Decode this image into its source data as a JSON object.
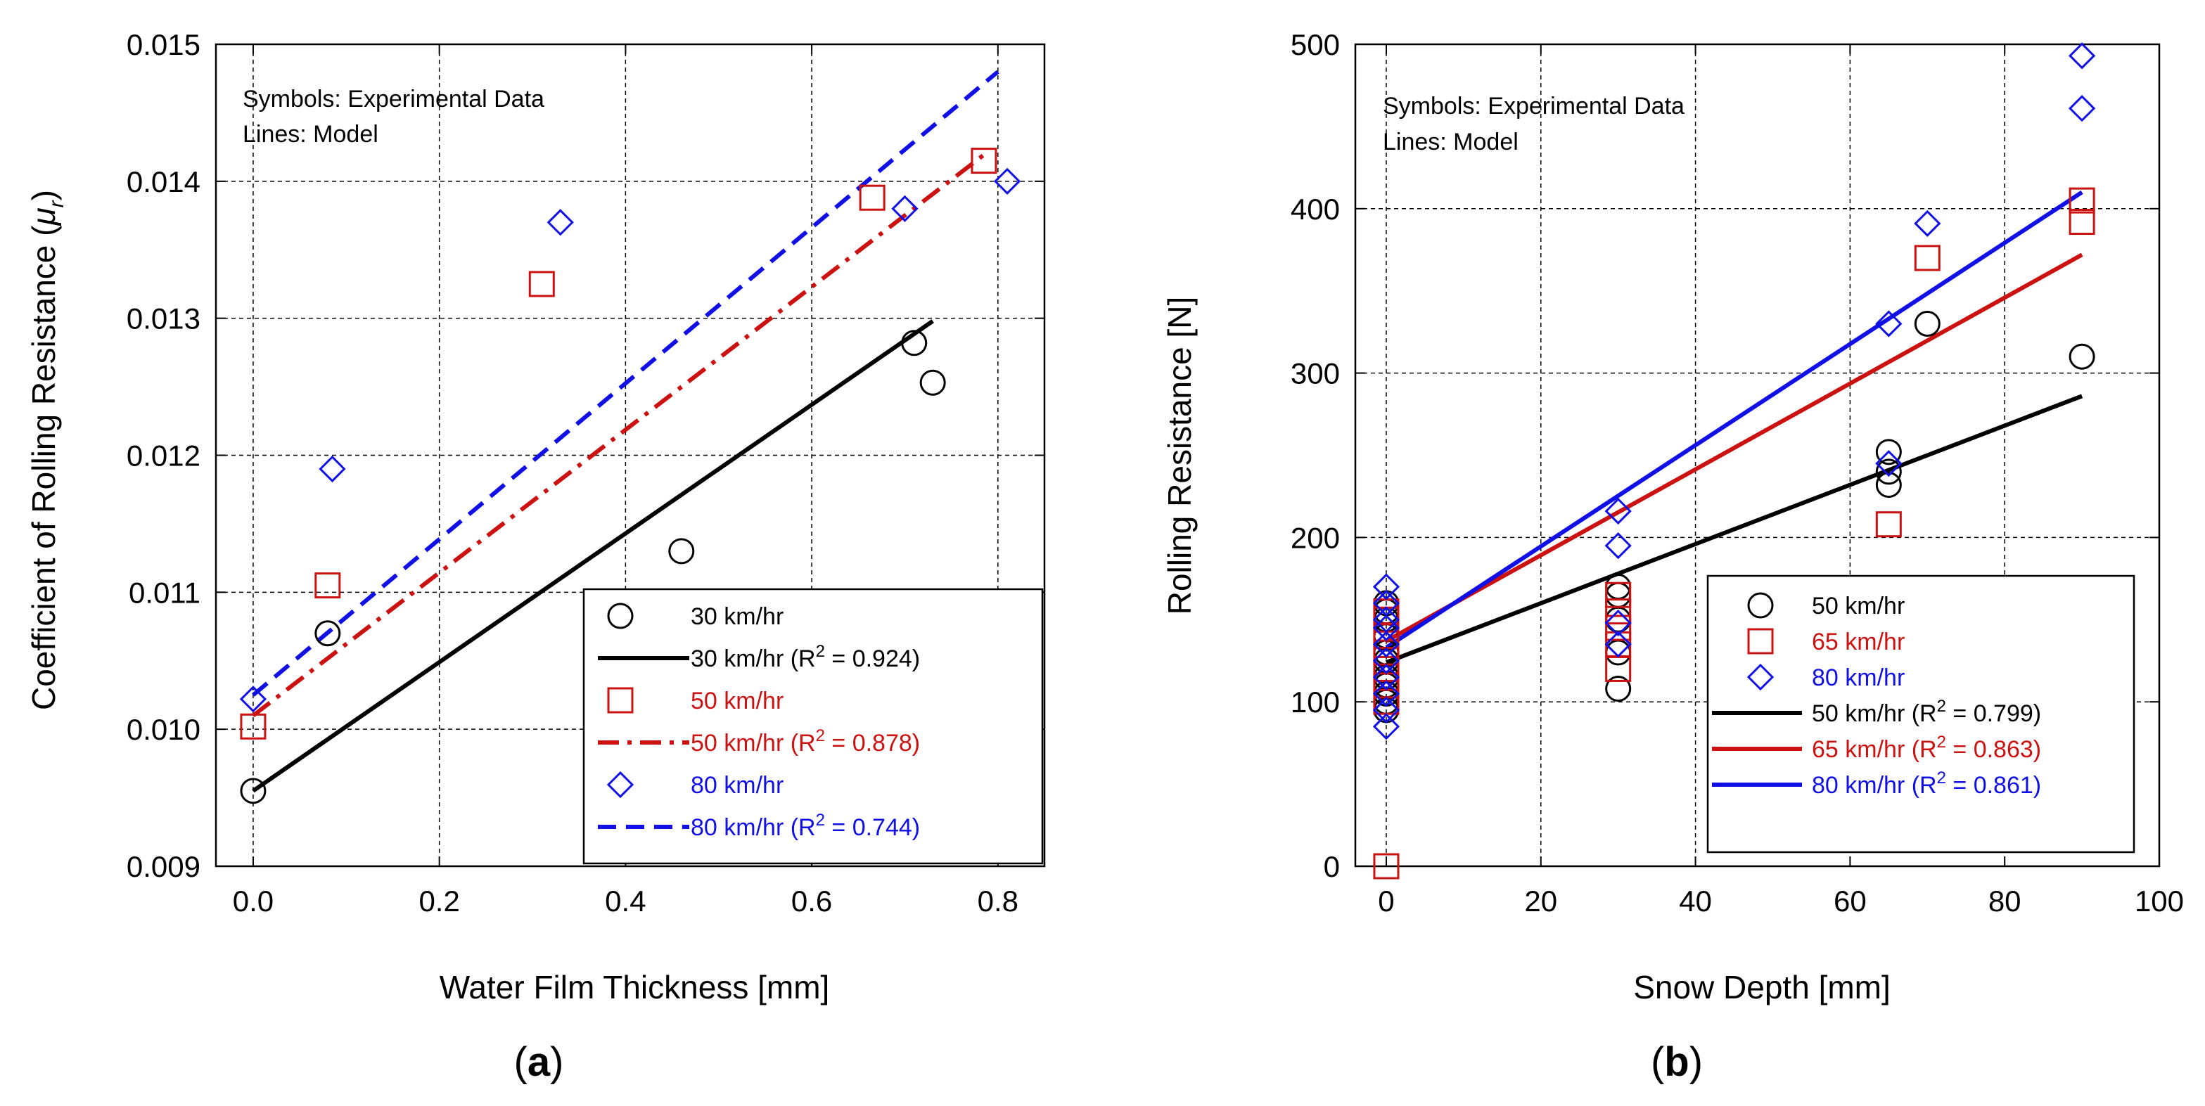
{
  "colors": {
    "black": "#000000",
    "red": "#cc1111",
    "blue": "#1010e6",
    "grid": "#000000"
  },
  "chart_data": [
    {
      "type": "scatter",
      "panel_label": "a",
      "xlabel": "Water Film Thickness [mm]",
      "ylabel_main": "Coefficient of Rolling Resistance (",
      "ylabel_symbol": "μ",
      "ylabel_sub": "r",
      "ylabel_close": ")",
      "xlim": [
        -0.04,
        0.85
      ],
      "ylim": [
        0.009,
        0.015
      ],
      "xticks": [
        0.0,
        0.2,
        0.4,
        0.6,
        0.8
      ],
      "xtick_labels": [
        "0.0",
        "0.2",
        "0.4",
        "0.6",
        "0.8"
      ],
      "yticks": [
        0.009,
        0.01,
        0.011,
        0.012,
        0.013,
        0.014,
        0.015
      ],
      "ytick_labels": [
        "0.009",
        "0.010",
        "0.011",
        "0.012",
        "0.013",
        "0.014",
        "0.015"
      ],
      "grid": true,
      "annotation_lines": [
        "Symbols: Experimental Data",
        "Lines: Model"
      ],
      "legend_position": "bottom-right",
      "series": [
        {
          "name": "30 km/hr",
          "kind": "points",
          "marker": "circle",
          "color": "black",
          "x": [
            0.0,
            0.08,
            0.46,
            0.71,
            0.73
          ],
          "y": [
            0.00955,
            0.0107,
            0.0113,
            0.01282,
            0.01253
          ]
        },
        {
          "name": "30 km/hr",
          "r2_label": "R",
          "r2_sup": "2",
          "r2_value": " = 0.924)",
          "kind": "line",
          "dash": "solid",
          "color": "black",
          "x": [
            0.0,
            0.73
          ],
          "y": [
            0.00955,
            0.01298
          ]
        },
        {
          "name": "50 km/hr",
          "kind": "points",
          "marker": "square",
          "color": "red",
          "x": [
            0.0,
            0.08,
            0.31,
            0.665,
            0.785
          ],
          "y": [
            0.01002,
            0.01105,
            0.01325,
            0.01388,
            0.01415
          ]
        },
        {
          "name": "50 km/hr",
          "r2_label": "R",
          "r2_sup": "2",
          "r2_value": " = 0.878)",
          "kind": "line",
          "dash": "dashdot",
          "color": "red",
          "x": [
            0.0,
            0.79
          ],
          "y": [
            0.0101,
            0.01422
          ]
        },
        {
          "name": "80 km/hr",
          "kind": "points",
          "marker": "diamond",
          "color": "blue",
          "x": [
            0.0,
            0.085,
            0.33,
            0.7,
            0.81
          ],
          "y": [
            0.01022,
            0.0119,
            0.0137,
            0.0138,
            0.014
          ]
        },
        {
          "name": "80 km/hr",
          "r2_label": "R",
          "r2_sup": "2",
          "r2_value": " = 0.744)",
          "kind": "line",
          "dash": "dashed",
          "color": "blue",
          "x": [
            0.0,
            0.8
          ],
          "y": [
            0.01025,
            0.0148
          ]
        }
      ]
    },
    {
      "type": "scatter",
      "panel_label": "b",
      "xlabel": "Snow Depth [mm]",
      "ylabel": "Rolling Resistance [N]",
      "xlim": [
        -4,
        100
      ],
      "ylim": [
        0,
        500
      ],
      "xticks": [
        0,
        20,
        40,
        60,
        80,
        100
      ],
      "xtick_labels": [
        "0",
        "20",
        "40",
        "60",
        "80",
        "100"
      ],
      "yticks": [
        0,
        100,
        200,
        300,
        400,
        500
      ],
      "ytick_labels": [
        "0",
        "100",
        "200",
        "300",
        "400",
        "500"
      ],
      "grid": true,
      "annotation_lines": [
        "Symbols: Experimental Data",
        "Lines: Model"
      ],
      "legend_position": "bottom-right",
      "series": [
        {
          "name": "50 km/hr",
          "kind": "points",
          "marker": "circle",
          "color": "black",
          "x": [
            0,
            0,
            0,
            0,
            0,
            0,
            0,
            0,
            0,
            0,
            0,
            30,
            30,
            30,
            30,
            30,
            65,
            65,
            65,
            70,
            90
          ],
          "y": [
            95,
            100,
            105,
            110,
            115,
            125,
            130,
            140,
            150,
            155,
            160,
            108,
            130,
            150,
            165,
            170,
            232,
            240,
            252,
            330,
            310
          ]
        },
        {
          "name": "65 km/hr",
          "kind": "points",
          "marker": "square",
          "color": "red",
          "x": [
            0,
            0,
            0,
            0,
            0,
            0,
            0,
            0,
            30,
            30,
            30,
            30,
            30,
            65,
            70,
            90,
            90
          ],
          "y": [
            0,
            100,
            110,
            120,
            130,
            140,
            150,
            155,
            120,
            135,
            145,
            155,
            165,
            208,
            370,
            392,
            405
          ]
        },
        {
          "name": "80 km/hr",
          "kind": "points",
          "marker": "diamond",
          "color": "blue",
          "x": [
            0,
            0,
            0,
            0,
            0,
            0,
            0,
            0,
            0,
            0,
            30,
            30,
            30,
            30,
            65,
            65,
            70,
            90,
            90
          ],
          "y": [
            85,
            95,
            105,
            115,
            125,
            135,
            145,
            150,
            160,
            170,
            135,
            148,
            195,
            216,
            245,
            330,
            391,
            461,
            493
          ]
        },
        {
          "name": "50 km/hr",
          "r2_label": "R",
          "r2_sup": "2",
          "r2_value": " = 0.799)",
          "kind": "line",
          "dash": "solid",
          "color": "black",
          "x": [
            0,
            90
          ],
          "y": [
            124,
            286
          ]
        },
        {
          "name": "65 km/hr",
          "r2_label": "R",
          "r2_sup": "2",
          "r2_value": " = 0.863)",
          "kind": "line",
          "dash": "solid",
          "color": "red",
          "x": [
            0,
            90
          ],
          "y": [
            137,
            372
          ]
        },
        {
          "name": "80 km/hr",
          "r2_label": "R",
          "r2_sup": "2",
          "r2_value": " = 0.861)",
          "kind": "line",
          "dash": "solid",
          "color": "blue",
          "x": [
            0,
            90
          ],
          "y": [
            133,
            410
          ]
        }
      ]
    }
  ]
}
